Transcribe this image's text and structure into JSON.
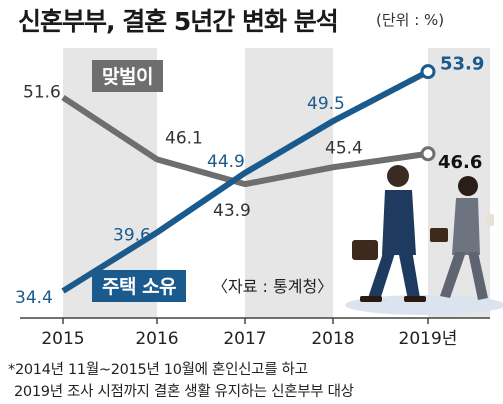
{
  "title": "신혼부부, 결혼 5년간 변화 분석",
  "unit_label": "(단위 : %)",
  "source": "〈자료 : 통계청〉",
  "footnote": [
    "*2014년 11월~2015년 10월에 혼인신고를 하고",
    "2019년 조사 시점까지 결혼 생활 유지하는 신혼부부 대상"
  ],
  "chart_data": {
    "type": "line",
    "categories": [
      "2015",
      "2016",
      "2017",
      "2018",
      "2019년"
    ],
    "series": [
      {
        "name": "맞벌이",
        "values": [
          51.6,
          46.1,
          43.9,
          45.4,
          46.6
        ],
        "color": "#6e6e6e"
      },
      {
        "name": "주택 소유",
        "values": [
          34.4,
          39.6,
          44.9,
          49.5,
          53.9
        ],
        "color": "#1a5a8c"
      }
    ],
    "value_labels": {
      "맞벌이": [
        "51.6",
        "46.1",
        "43.9",
        "45.4",
        "46.6"
      ],
      "주택 소유": [
        "34.4",
        "39.6",
        "44.9",
        "49.5",
        "53.9"
      ]
    },
    "ylim": [
      32,
      56
    ],
    "grid": "vertical bands",
    "xlabel": "",
    "ylabel": ""
  }
}
